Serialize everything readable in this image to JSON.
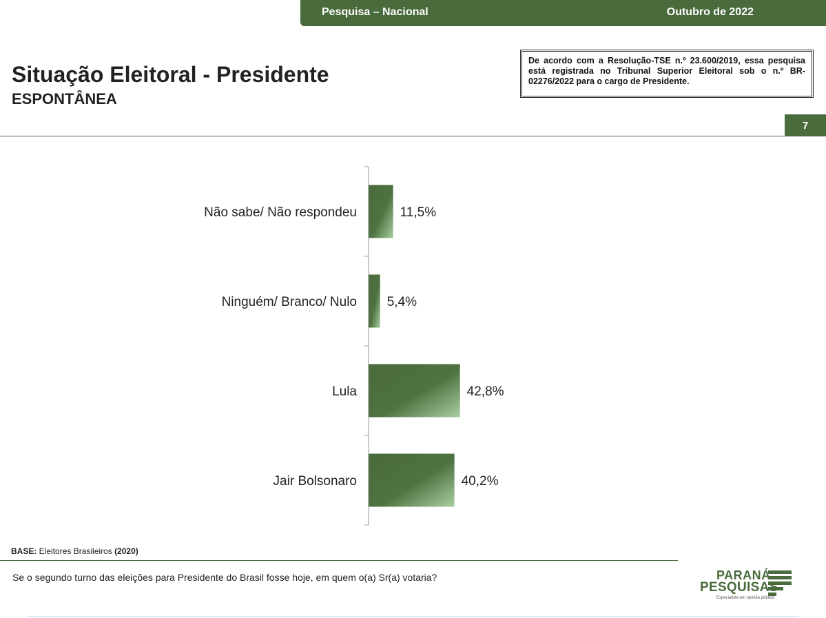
{
  "header": {
    "survey_label": "Pesquisa – Nacional",
    "date_label": "Outubro de 2022"
  },
  "page": {
    "title": "Situação Eleitoral - Presidente",
    "subtitle": "ESPONTÂNEA",
    "page_number": "7"
  },
  "tse_notice": {
    "prefix": "De acordo com a Resolução-TSE n.º 23.600/2019, essa pesquisa está registrada no Tribunal Superior Eleitoral sob o n.º ",
    "registration": "BR-02276/2022",
    "suffix": " para o cargo de Presidente."
  },
  "chart_data": {
    "type": "bar",
    "orientation": "horizontal",
    "categories": [
      "Não sabe/ Não respondeu",
      "Ninguém/ Branco/ Nulo",
      "Lula",
      "Jair Bolsonaro"
    ],
    "values": [
      11.5,
      5.4,
      42.8,
      40.2
    ],
    "value_labels": [
      "11,5%",
      "5,4%",
      "42,8%",
      "40,2%"
    ],
    "unit": "%",
    "xlim": [
      0,
      100
    ],
    "grid": false,
    "colors": {
      "bar_dark": "#4a6b3c",
      "bar_light": "#a8cfa0"
    }
  },
  "footer": {
    "base_label": "BASE:",
    "base_text": " Eleitores Brasileiros ",
    "base_year": "(2020)",
    "question": "Se o segundo turno das eleições para Presidente do Brasil fosse hoje, em quem o(a) Sr(a) votaria?"
  },
  "logo": {
    "line1": "PARANÁ",
    "line2": "PESQUISAS",
    "tagline": "Especialista em opinião pública"
  }
}
